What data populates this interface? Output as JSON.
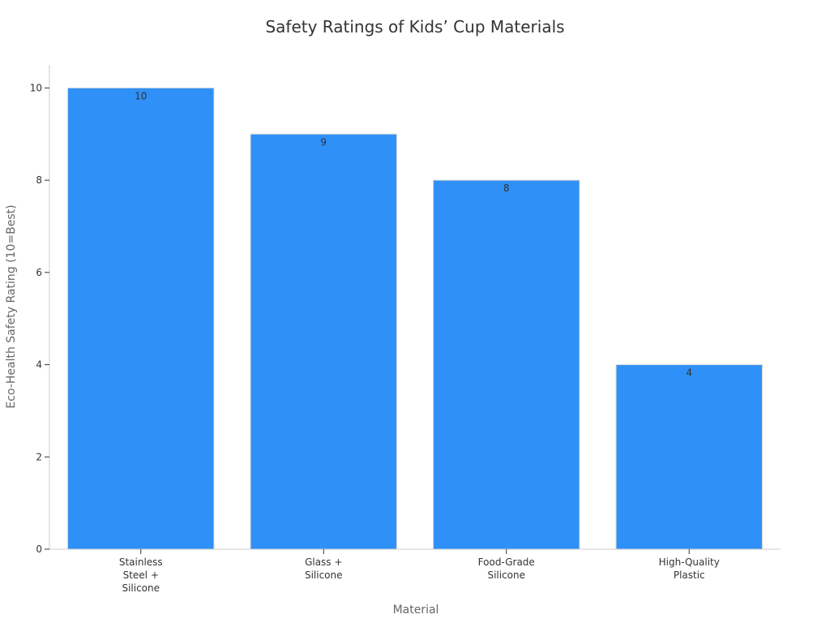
{
  "chart_data": {
    "type": "bar",
    "title": "Safety Ratings of Kids’ Cup Materials",
    "xlabel": "Material",
    "ylabel": "Eco-Health Safety Rating (10=Best)",
    "categories": [
      [
        "Stainless",
        "Steel +",
        "Silicone"
      ],
      [
        "Glass +",
        "Silicone"
      ],
      [
        "Food-Grade",
        "Silicone"
      ],
      [
        "High-Quality",
        "Plastic"
      ]
    ],
    "values": [
      10,
      9,
      8,
      4
    ],
    "data_labels": [
      "10",
      "9",
      "8",
      "4"
    ],
    "ylim": [
      0,
      10.5
    ],
    "yticks": [
      0,
      2,
      4,
      6,
      8,
      10
    ],
    "bar_color": "#2f91f7",
    "grid": false,
    "legend": "none"
  }
}
